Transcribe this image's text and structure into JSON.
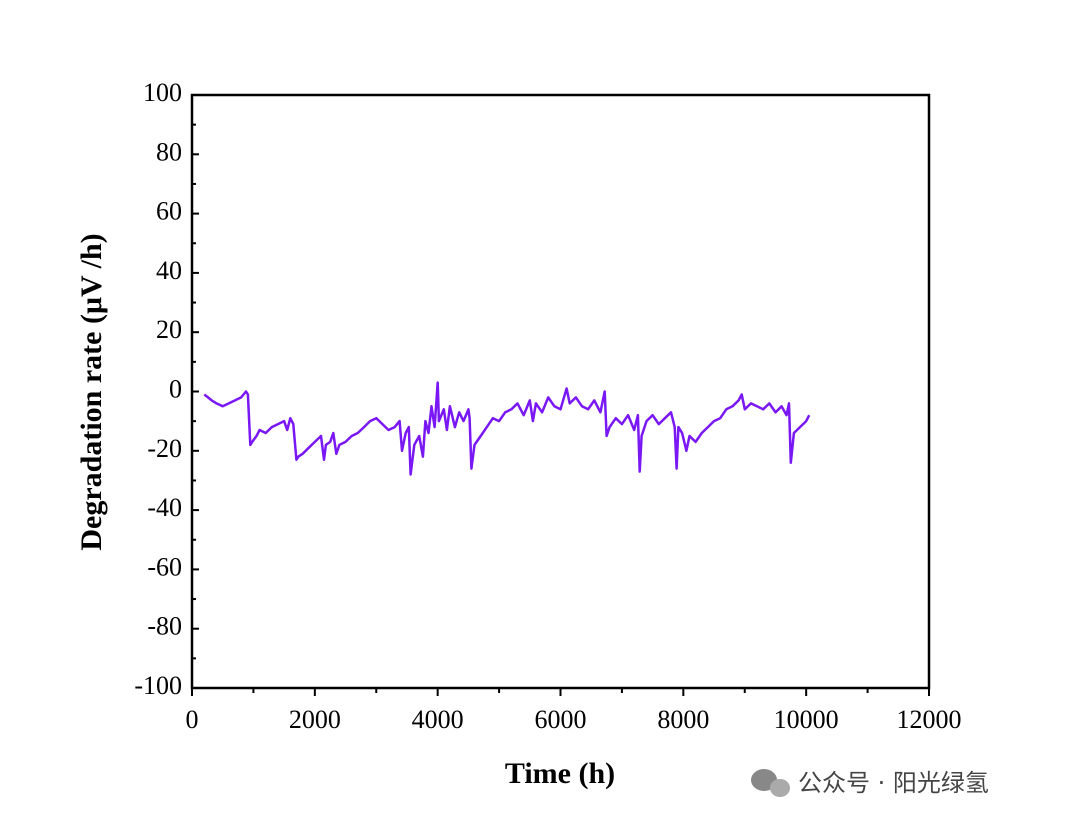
{
  "chart_data": {
    "type": "line",
    "xlabel": "Time (h)",
    "ylabel": "Degradation rate (μV /h)",
    "x": [
      200,
      260,
      320,
      400,
      500,
      600,
      700,
      800,
      880,
      910,
      950,
      980,
      1050,
      1100,
      1200,
      1300,
      1400,
      1500,
      1550,
      1600,
      1650,
      1700,
      1730,
      1800,
      1900,
      2000,
      2100,
      2150,
      2180,
      2250,
      2300,
      2350,
      2400,
      2500,
      2600,
      2700,
      2800,
      2900,
      3000,
      3100,
      3200,
      3300,
      3380,
      3420,
      3480,
      3530,
      3560,
      3620,
      3700,
      3760,
      3800,
      3850,
      3900,
      3950,
      4000,
      4020,
      4100,
      4150,
      4200,
      4280,
      4350,
      4420,
      4500,
      4520,
      4550,
      4600,
      4700,
      4800,
      4900,
      5000,
      5100,
      5200,
      5300,
      5400,
      5500,
      5550,
      5600,
      5700,
      5800,
      5900,
      6000,
      6100,
      6150,
      6250,
      6350,
      6450,
      6550,
      6650,
      6720,
      6750,
      6800,
      6900,
      7000,
      7100,
      7200,
      7260,
      7290,
      7320,
      7400,
      7500,
      7600,
      7700,
      7800,
      7860,
      7890,
      7920,
      7980,
      8050,
      8100,
      8200,
      8300,
      8400,
      8500,
      8600,
      8700,
      8800,
      8900,
      8950,
      9000,
      9100,
      9200,
      9300,
      9400,
      9500,
      9600,
      9680,
      9720,
      9750,
      9800,
      9900,
      10000,
      10050
    ],
    "series": [
      {
        "name": "Degradation rate",
        "color": "#7a17f5",
        "values": [
          -1,
          -2,
          -3,
          -4,
          -5,
          -4,
          -3,
          -2,
          0,
          -1,
          -18,
          -17,
          -15,
          -13,
          -14,
          -12,
          -11,
          -10,
          -13,
          -9,
          -11,
          -23,
          -22,
          -21,
          -19,
          -17,
          -15,
          -23,
          -18,
          -17,
          -14,
          -21,
          -18,
          -17,
          -15,
          -14,
          -12,
          -10,
          -9,
          -11,
          -13,
          -12,
          -10,
          -20,
          -14,
          -12,
          -28,
          -18,
          -15,
          -22,
          -10,
          -14,
          -5,
          -12,
          3,
          -10,
          -6,
          -13,
          -5,
          -12,
          -7,
          -10,
          -6,
          -9,
          -26,
          -18,
          -15,
          -12,
          -9,
          -10,
          -7,
          -6,
          -4,
          -8,
          -3,
          -10,
          -4,
          -7,
          -2,
          -5,
          -6,
          1,
          -4,
          -2,
          -5,
          -6,
          -3,
          -7,
          0,
          -15,
          -12,
          -9,
          -11,
          -8,
          -13,
          -8,
          -27,
          -15,
          -10,
          -8,
          -11,
          -9,
          -7,
          -12,
          -26,
          -12,
          -14,
          -20,
          -15,
          -17,
          -14,
          -12,
          -10,
          -9,
          -6,
          -5,
          -3,
          -1,
          -6,
          -4,
          -5,
          -6,
          -4,
          -7,
          -5,
          -8,
          -4,
          -24,
          -14,
          -12,
          -10,
          -8
        ]
      }
    ],
    "xlim": [
      0,
      12000
    ],
    "xticks": [
      0,
      2000,
      4000,
      6000,
      8000,
      10000,
      12000
    ],
    "ylim": [
      -100,
      100
    ],
    "yticks": [
      -100,
      -80,
      -60,
      -40,
      -20,
      0,
      20,
      40,
      60,
      80,
      100
    ]
  },
  "watermark": "公众号 · 阳光绿氢"
}
